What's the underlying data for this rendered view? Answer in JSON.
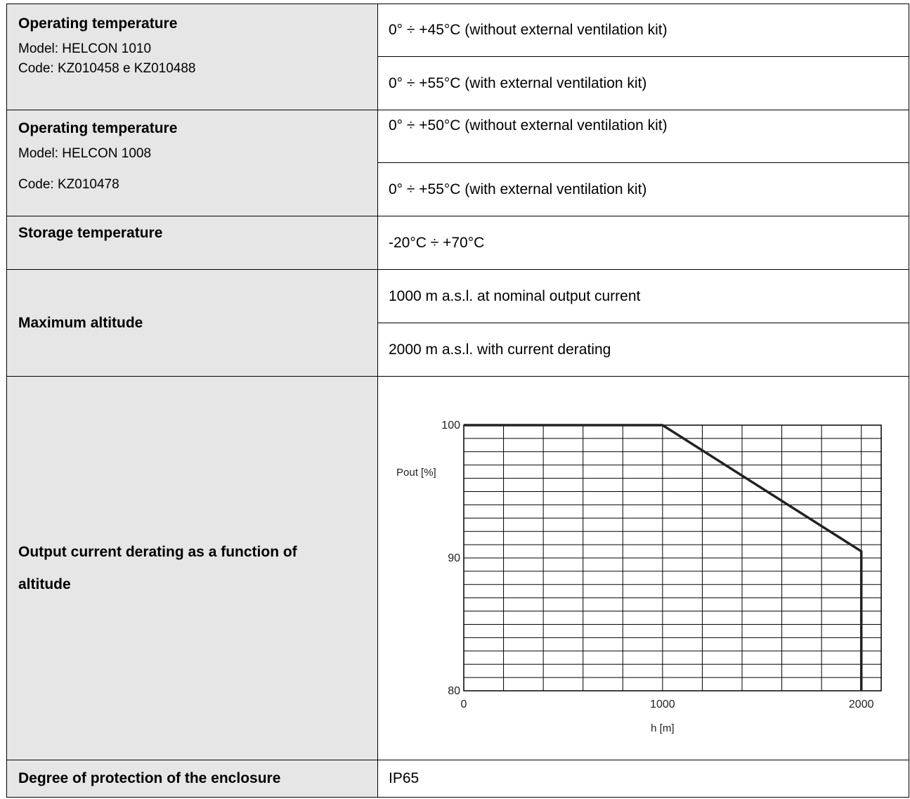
{
  "rows": {
    "op_temp_1010": {
      "title": "Operating temperature",
      "model": "Model: HELCON 1010",
      "code": "Code: KZ010458 e KZ010488",
      "value_a": "0° ÷ +45°C (without external ventilation kit)",
      "value_b": "0° ÷ +55°C (with external ventilation kit)"
    },
    "op_temp_1008": {
      "title": "Operating temperature",
      "model": "Model: HELCON 1008",
      "code": "Code: KZ010478",
      "value_a": "0° ÷ +50°C (without external ventilation kit)",
      "value_b": "0° ÷ +55°C (with external ventilation kit)"
    },
    "storage": {
      "title": "Storage temperature",
      "value": "-20°C ÷ +70°C"
    },
    "altitude": {
      "title": "Maximum altitude",
      "value_a": "1000 m a.s.l. at nominal output current",
      "value_b": "2000 m a.s.l. with current derating"
    },
    "derating": {
      "title_line1": "Output current derating as a function of",
      "title_line2": "altitude"
    },
    "protection": {
      "title": "Degree of protection of the enclosure",
      "value": "IP65"
    }
  },
  "chart_data": {
    "type": "line",
    "title": "",
    "xlabel": "h [m]",
    "ylabel": "Pout [%]",
    "xlim": [
      0,
      2100
    ],
    "ylim": [
      80,
      100
    ],
    "x_ticks": [
      "0",
      "1000",
      "2000"
    ],
    "y_ticks": [
      "80",
      "90",
      "100"
    ],
    "grid": true,
    "series": [
      {
        "x": [
          0,
          1000,
          2000,
          2000
        ],
        "y": [
          100,
          100,
          90.5,
          80
        ]
      }
    ]
  }
}
